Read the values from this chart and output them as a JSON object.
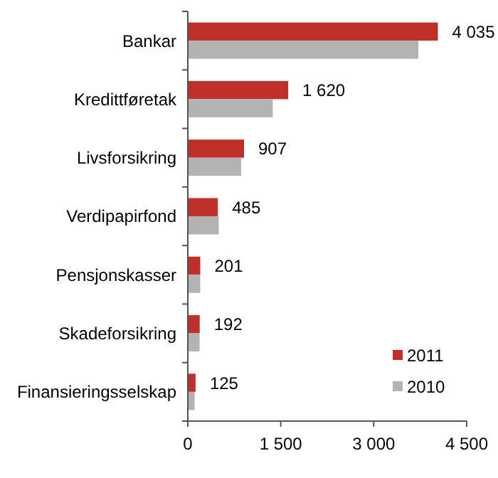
{
  "chart_data": {
    "type": "bar",
    "orientation": "horizontal",
    "categories": [
      "Bankar",
      "Kredittføretak",
      "Livsforsikring",
      "Verdipapirfond",
      "Pensjonskasser",
      "Skadeforsikring",
      "Finansieringsselskap"
    ],
    "series": [
      {
        "name": "2011",
        "color": "#c0302b",
        "values": [
          4035,
          1620,
          907,
          485,
          201,
          192,
          125
        ],
        "value_labels": [
          "4 035",
          "1 620",
          "907",
          "485",
          "201",
          "192",
          "125"
        ]
      },
      {
        "name": "2010",
        "color": "#b3b3b3",
        "values": [
          3720,
          1370,
          860,
          500,
          200,
          190,
          110
        ]
      }
    ],
    "xlim": [
      0,
      4500
    ],
    "xticks": [
      0,
      {
        "value": 1500,
        "label": "1 500"
      },
      {
        "value": 3000,
        "label": "3 000"
      },
      {
        "value": 4500,
        "label": "4 500"
      }
    ],
    "grid": false,
    "legend": "bottom right"
  }
}
